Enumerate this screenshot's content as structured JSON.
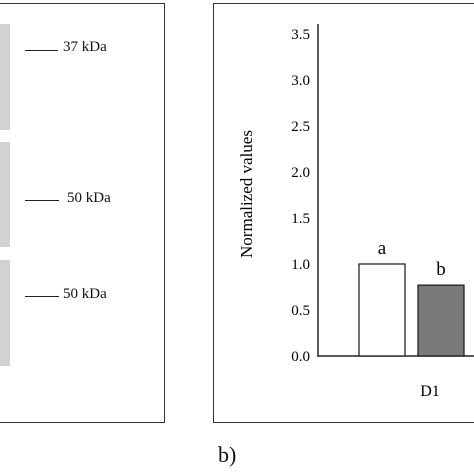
{
  "panel_a": {
    "markers": [
      {
        "label": "37 kDa"
      },
      {
        "label": "50 kDa"
      },
      {
        "label": "50 kDa"
      }
    ],
    "band_color": "#d2d2d2"
  },
  "panel_b": {
    "sublabel": "b)"
  },
  "chart_data": {
    "type": "bar",
    "categories": [
      "D1"
    ],
    "series": [
      {
        "values": [
          1.0
        ],
        "color": "#ffffff",
        "label": "a"
      },
      {
        "values": [
          0.77
        ],
        "color": "#7a7a7a",
        "label": "b"
      }
    ],
    "ylabel": "Normalized values",
    "xlabel": "",
    "ylim": [
      0,
      3.5
    ],
    "yticks": [
      "0.0",
      "0.5",
      "1.0",
      "1.5",
      "2.0",
      "2.5",
      "3.0",
      "3.5"
    ],
    "grid": false
  }
}
